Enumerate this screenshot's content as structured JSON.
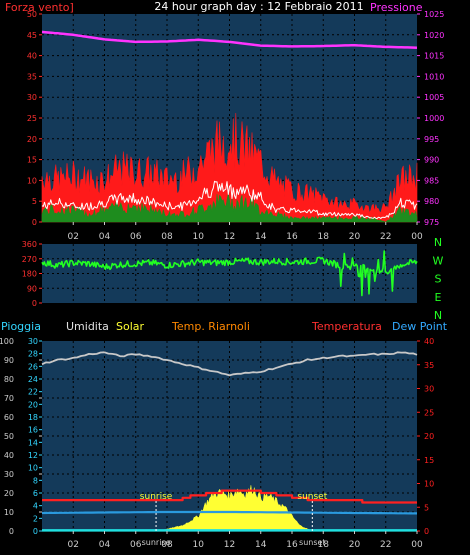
{
  "title": "24 hour graph day : 12 Febbraio 2011",
  "colors": {
    "background": "#000000",
    "plot": "#143a5a",
    "grid": "#000000",
    "wind_speed": "#ff1a1a",
    "wind_gust": "#ff1a1a",
    "wind_avg": "#ffffff",
    "wind_low": "#1e8c1e",
    "pressure": "#ff33ff",
    "direction": "#22ff22",
    "humidity": "#c8c8c8",
    "temperature": "#ff2020",
    "solar": "#ffff33",
    "dewpoint": "#2a9adf",
    "rain": "#20e0e0",
    "riarnoli": "#ff8800",
    "left_axis": "#ff3030",
    "cyan_axis": "#33d6ff"
  },
  "chart_data": [
    {
      "name": "wind-pressure",
      "type": "line",
      "legend": {
        "left": "Forza vento]",
        "right": "Pressione"
      },
      "x_ticks": [
        "02",
        "04",
        "06",
        "08",
        "10",
        "12",
        "14",
        "16",
        "18",
        "20",
        "22",
        "00"
      ],
      "x_range": [
        0,
        24
      ],
      "left_axis": {
        "ylim": [
          0,
          50
        ],
        "ticks": [
          0,
          5,
          10,
          15,
          20,
          25,
          30,
          35,
          40,
          45,
          50
        ]
      },
      "right_axis": {
        "ylim": [
          975,
          1025
        ],
        "ticks": [
          975,
          980,
          985,
          990,
          995,
          1000,
          1005,
          1010,
          1015,
          1020,
          1025
        ]
      },
      "series": [
        {
          "key": "gust",
          "hours": [
            0,
            1,
            2,
            3,
            4,
            5,
            6,
            7,
            8,
            9,
            10,
            11,
            12,
            13,
            14,
            15,
            16,
            17,
            18,
            19,
            20,
            21,
            22,
            23,
            24
          ],
          "values": [
            13,
            12,
            13,
            12,
            12,
            15,
            14,
            14,
            12,
            13,
            16,
            21,
            24,
            21,
            17,
            11,
            9,
            8,
            7,
            5,
            5,
            4,
            4,
            12,
            13
          ]
        },
        {
          "key": "avg",
          "hours": [
            0,
            1,
            2,
            3,
            4,
            5,
            6,
            7,
            8,
            9,
            10,
            11,
            12,
            13,
            14,
            15,
            16,
            17,
            18,
            19,
            20,
            21,
            22,
            23,
            24
          ],
          "values": [
            4,
            5,
            4,
            4,
            5,
            6,
            6,
            5,
            4,
            4,
            6,
            9,
            8,
            8,
            6,
            3,
            3,
            3,
            2,
            2,
            2,
            1,
            1,
            5,
            4
          ]
        },
        {
          "key": "low",
          "hours": [
            0,
            1,
            2,
            3,
            4,
            5,
            6,
            7,
            8,
            9,
            10,
            11,
            12,
            13,
            14,
            15,
            16,
            17,
            18,
            19,
            20,
            21,
            22,
            23,
            24
          ],
          "values": [
            3,
            3,
            3,
            2,
            3,
            4,
            4,
            3,
            2,
            2,
            3,
            5,
            5,
            5,
            3,
            2,
            1,
            1,
            1,
            1,
            1,
            1,
            0,
            3,
            2
          ]
        },
        {
          "key": "pressure",
          "hours": [
            0,
            2,
            4,
            6,
            8,
            10,
            12,
            14,
            16,
            18,
            20,
            22,
            24
          ],
          "values": [
            1020.7,
            1020.0,
            1018.9,
            1018.3,
            1018.4,
            1018.8,
            1018.3,
            1017.4,
            1017.2,
            1017.3,
            1017.5,
            1017.1,
            1016.9
          ]
        }
      ]
    },
    {
      "name": "wind-direction",
      "type": "line",
      "x_range": [
        0,
        24
      ],
      "ylim": [
        0,
        360
      ],
      "left_ticks": [
        0,
        90,
        180,
        270,
        360
      ],
      "right_labels": [
        "N",
        "W",
        "S",
        "E",
        "N"
      ],
      "series": [
        {
          "key": "direction",
          "hours": [
            0,
            1,
            2,
            3,
            4,
            5,
            6,
            7,
            8,
            9,
            10,
            11,
            12,
            13,
            14,
            15,
            16,
            17,
            18,
            19,
            20,
            21,
            22,
            23,
            24
          ],
          "values": [
            250,
            230,
            245,
            240,
            220,
            235,
            240,
            245,
            230,
            240,
            250,
            245,
            250,
            255,
            250,
            255,
            250,
            255,
            260,
            230,
            220,
            210,
            190,
            235,
            250
          ]
        }
      ]
    },
    {
      "name": "weather",
      "type": "line",
      "legend": {
        "rain": "Pioggia",
        "humidity": "Umidita",
        "solar": "Solar",
        "riarnoli": "Temp. Riarnoli",
        "temperature": "Temperatura",
        "dewpoint": "Dew Point"
      },
      "x_ticks": [
        "02",
        "04",
        "06",
        "08",
        "10",
        "12",
        "14",
        "16",
        "18",
        "20",
        "22",
        "00"
      ],
      "x_range": [
        0,
        24
      ],
      "sunrise": {
        "label": "sunrise",
        "hour": 7.3
      },
      "sunset": {
        "label": "sunset",
        "hour": 17.3
      },
      "axis_rain": {
        "ylim": [
          0,
          100
        ],
        "ticks": [
          0,
          10,
          20,
          30,
          40,
          50,
          60,
          70,
          80,
          90,
          100
        ]
      },
      "axis_cyan": {
        "ylim": [
          0,
          30
        ],
        "ticks": [
          0,
          2,
          4,
          6,
          8,
          10,
          12,
          14,
          16,
          18,
          20,
          22,
          24,
          26,
          28,
          30
        ]
      },
      "axis_right": {
        "ylim": [
          0,
          40
        ],
        "ticks": [
          0,
          5,
          10,
          15,
          20,
          25,
          30,
          35,
          40
        ]
      },
      "series": [
        {
          "key": "humidity",
          "hours": [
            0,
            1,
            2,
            3,
            4,
            5,
            6,
            7,
            8,
            9,
            10,
            11,
            12,
            13,
            14,
            15,
            16,
            17,
            18,
            19,
            20,
            21,
            22,
            23,
            24
          ],
          "values": [
            88,
            90,
            91,
            93,
            94,
            92,
            93,
            92,
            90,
            88,
            86,
            84,
            82,
            83,
            84,
            86,
            88,
            90,
            91,
            92,
            92,
            93,
            93,
            94,
            93
          ]
        },
        {
          "key": "temperature",
          "hours": [
            0,
            2,
            4,
            6,
            8,
            9,
            10,
            11,
            12,
            13,
            14,
            15,
            16,
            17,
            18,
            20,
            22,
            24
          ],
          "values": [
            6.5,
            6.5,
            6.5,
            6.3,
            6.4,
            7.0,
            7.6,
            8.2,
            8.5,
            8.4,
            8.1,
            7.6,
            7.1,
            6.7,
            6.5,
            6.3,
            6.0,
            5.8
          ]
        },
        {
          "key": "dewpoint",
          "hours": [
            0,
            4,
            8,
            12,
            16,
            20,
            24
          ],
          "values": [
            3.8,
            3.9,
            4.0,
            4.0,
            3.9,
            3.8,
            3.7
          ]
        },
        {
          "key": "solar",
          "hours": [
            7.3,
            8,
            9,
            10,
            10.5,
            11,
            11.5,
            12,
            12.5,
            13,
            13.5,
            14,
            14.5,
            15,
            15.5,
            16,
            16.5,
            17.3
          ],
          "values": [
            0,
            1,
            3,
            8,
            15,
            20,
            21,
            19,
            22,
            20,
            23,
            18,
            19,
            16,
            13,
            8,
            3,
            0
          ]
        },
        {
          "key": "rain",
          "hours": [
            0,
            24
          ],
          "values": [
            0.3,
            0.3
          ]
        }
      ]
    }
  ]
}
